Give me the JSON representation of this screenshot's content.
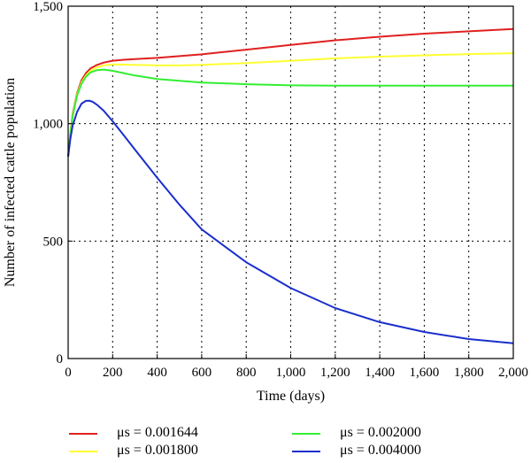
{
  "chart_data": {
    "type": "line",
    "xlabel": "Time (days)",
    "ylabel": "Number of infected cattle population",
    "xlim": [
      0,
      2000
    ],
    "ylim": [
      0,
      1500
    ],
    "x_ticks": [
      0,
      200,
      400,
      600,
      800,
      1000,
      1200,
      1400,
      1600,
      1800,
      2000
    ],
    "x_tick_labels": [
      "0",
      "200",
      "400",
      "600",
      "800",
      "1,000",
      "1,200",
      "1,400",
      "1,600",
      "1,800",
      "2,000"
    ],
    "y_ticks": [
      0,
      500,
      1000,
      1500
    ],
    "y_tick_labels": [
      "0",
      "500",
      "1,000",
      "1,500"
    ],
    "grid": "dotted",
    "legend_position": "bottom",
    "series": [
      {
        "name": "μs = 0.001644",
        "color": "#e02020",
        "x": [
          0,
          10,
          20,
          40,
          60,
          80,
          100,
          130,
          160,
          200,
          250,
          300,
          400,
          600,
          800,
          1000,
          1200,
          1400,
          1600,
          1800,
          2000
        ],
        "y": [
          860,
          960,
          1040,
          1130,
          1185,
          1215,
          1235,
          1250,
          1260,
          1268,
          1272,
          1275,
          1280,
          1295,
          1315,
          1335,
          1355,
          1370,
          1383,
          1393,
          1403
        ]
      },
      {
        "name": "μs = 0.001800",
        "color": "#ffff33",
        "x": [
          0,
          10,
          20,
          40,
          60,
          80,
          100,
          130,
          160,
          200,
          300,
          400,
          500,
          600,
          800,
          1000,
          1200,
          1400,
          1600,
          1800,
          2000
        ],
        "y": [
          860,
          958,
          1035,
          1125,
          1175,
          1205,
          1225,
          1240,
          1248,
          1252,
          1250,
          1248,
          1248,
          1250,
          1258,
          1268,
          1278,
          1285,
          1291,
          1296,
          1300
        ]
      },
      {
        "name": "μs = 0.002000",
        "color": "#33ee33",
        "x": [
          0,
          10,
          20,
          40,
          60,
          80,
          100,
          130,
          160,
          200,
          250,
          300,
          400,
          600,
          800,
          1000,
          1200,
          1400,
          1600,
          1800,
          2000
        ],
        "y": [
          860,
          955,
          1030,
          1120,
          1170,
          1200,
          1218,
          1228,
          1230,
          1225,
          1215,
          1205,
          1190,
          1175,
          1168,
          1163,
          1162,
          1162,
          1162,
          1162,
          1162
        ]
      },
      {
        "name": "μs = 0.004000",
        "color": "#1a2fcc",
        "x": [
          0,
          10,
          20,
          40,
          60,
          80,
          95,
          110,
          130,
          160,
          200,
          250,
          300,
          400,
          500,
          600,
          800,
          1000,
          1200,
          1400,
          1600,
          1800,
          2000
        ],
        "y": [
          860,
          935,
          990,
          1050,
          1085,
          1097,
          1098,
          1093,
          1080,
          1055,
          1010,
          950,
          890,
          770,
          655,
          550,
          410,
          300,
          215,
          155,
          113,
          83,
          65
        ]
      }
    ]
  },
  "legend": {
    "items": [
      {
        "label": "μs = 0.001644",
        "color": "#e02020"
      },
      {
        "label": "μs = 0.001800",
        "color": "#ffff33"
      },
      {
        "label": "μs = 0.002000",
        "color": "#33ee33"
      },
      {
        "label": "μs = 0.004000",
        "color": "#1a2fcc"
      }
    ]
  }
}
